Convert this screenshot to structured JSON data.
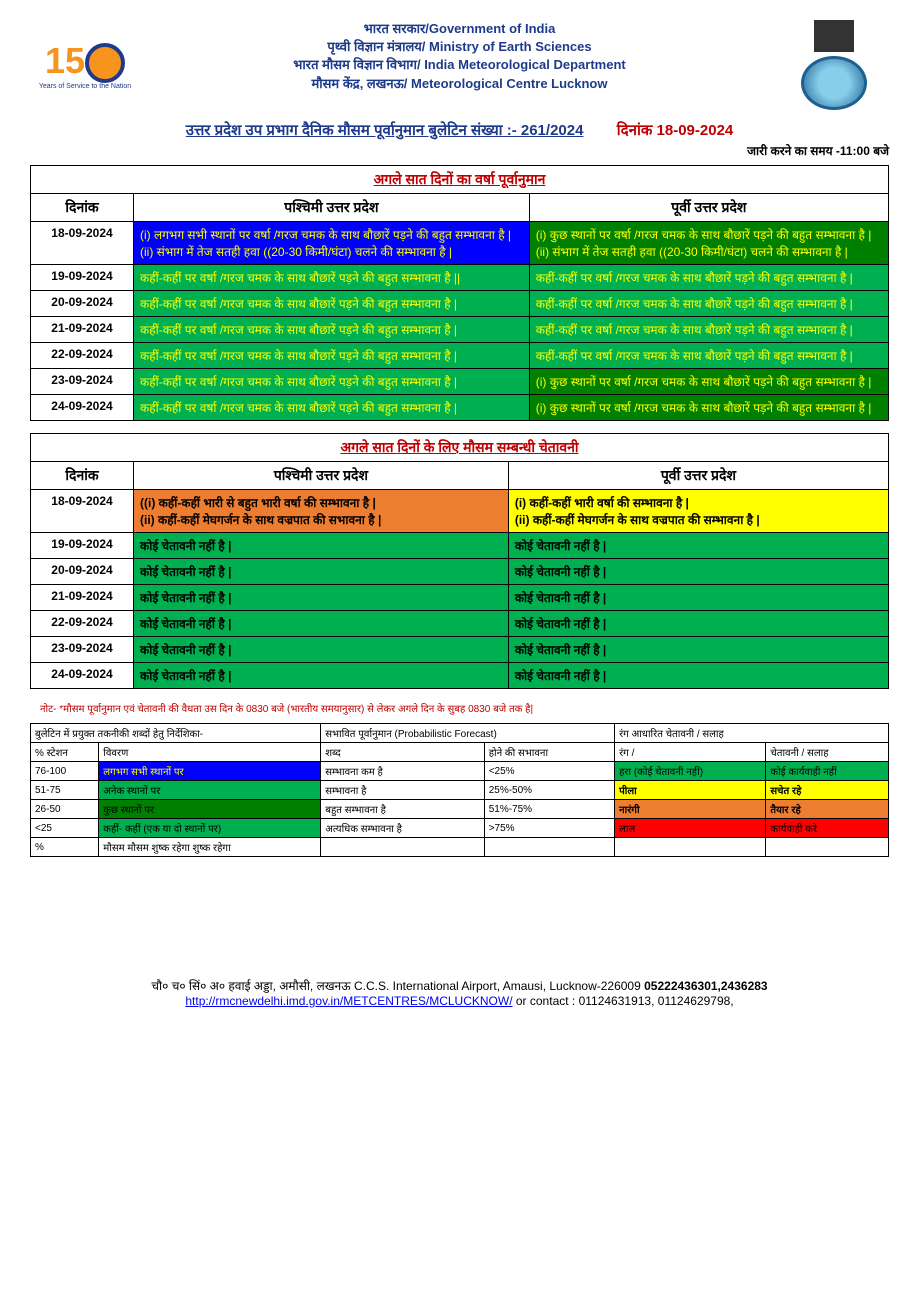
{
  "header": {
    "line1": "भारत सरकार/Government of India",
    "line2": "पृथ्वी विज्ञान मंत्रालय/ Ministry of Earth Sciences",
    "line3": "भारत मौसम विज्ञान विभाग/ India Meteorological Department",
    "line4": "मौसम केंद्र, लखनऊ/ Meteorological Centre Lucknow",
    "logo_sub": "Years of Service to the Nation"
  },
  "title": {
    "main": "उत्तर प्रदेश उप प्रभाग दैनिक मौसम पूर्वानुमान बुलेटिन संख्या  :- 261/2024",
    "date_label": "दिनांक 18-09-2024",
    "time": "जारी करने का समय -11:00 बजे"
  },
  "forecast": {
    "section_title": "अगले सात दिनों का वर्षा पूर्वानुमान",
    "col_date": "दिनांक",
    "col_west": "पश्चिमी उत्तर प्रदेश",
    "col_east": "पूर्वी उत्तर प्रदेश",
    "rows": [
      {
        "date": "18-09-2024",
        "west": "(i) लगभग सभी स्थानों पर वर्षा /गरज चमक के साथ बौछारें पड़ने की बहुत सम्भावना है |\n(ii) संभाग में तेज सतही हवा ((20-30 किमी/घंटा) चलने की सम्भावना है |",
        "west_bg": "bg-blue",
        "east": "(i) कुछ स्थानों पर वर्षा /गरज चमक के साथ बौछारें पड़ने की बहुत सम्भावना है |\n(ii) संभाग में तेज सतही हवा ((20-30 किमी/घंटा) चलने की सम्भावना है |",
        "east_bg": "bg-green-dark"
      },
      {
        "date": "19-09-2024",
        "west": "कहीं-कहीं पर वर्षा /गरज चमक के साथ बौछारें पड़ने की बहुत सम्भावना है ||",
        "west_bg": "bg-green-bright",
        "east": "कहीं-कहीं पर वर्षा /गरज चमक के साथ बौछारें पड़ने की बहुत सम्भावना है |",
        "east_bg": "bg-green-bright"
      },
      {
        "date": "20-09-2024",
        "west": "कहीं-कहीं पर वर्षा /गरज चमक के साथ बौछारें पड़ने की बहुत सम्भावना है |",
        "west_bg": "bg-green-bright",
        "east": "कहीं-कहीं पर वर्षा /गरज चमक के साथ बौछारें पड़ने की बहुत सम्भावना है |",
        "east_bg": "bg-green-bright"
      },
      {
        "date": "21-09-2024",
        "west": "कहीं-कहीं पर वर्षा /गरज चमक के साथ बौछारें पड़ने की बहुत सम्भावना है |",
        "west_bg": "bg-green-bright",
        "east": "कहीं-कहीं पर वर्षा /गरज चमक के साथ बौछारें पड़ने की बहुत सम्भावना है |",
        "east_bg": "bg-green-bright"
      },
      {
        "date": "22-09-2024",
        "west": "कहीं-कहीं पर वर्षा /गरज चमक के साथ बौछारें पड़ने की बहुत सम्भावना है |",
        "west_bg": "bg-green-bright",
        "east": "कहीं-कहीं पर वर्षा /गरज चमक के साथ बौछारें पड़ने की बहुत सम्भावना है |",
        "east_bg": "bg-green-bright"
      },
      {
        "date": "23-09-2024",
        "west": "कहीं-कहीं पर वर्षा /गरज चमक के साथ बौछारें पड़ने की बहुत सम्भावना है |",
        "west_bg": "bg-green-bright",
        "east": "(i) कुछ स्थानों पर वर्षा /गरज चमक के साथ बौछारें पड़ने की बहुत सम्भावना है |",
        "east_bg": "bg-green-dark"
      },
      {
        "date": "24-09-2024",
        "west": "कहीं-कहीं पर वर्षा /गरज चमक के साथ बौछारें पड़ने की बहुत सम्भावना है |",
        "west_bg": "bg-green-bright",
        "east": "(i) कुछ स्थानों पर वर्षा /गरज चमक के साथ बौछारें पड़ने की बहुत सम्भावना है |",
        "east_bg": "bg-green-dark"
      }
    ]
  },
  "warning": {
    "section_title": "अगले सात दिनों के लिए मौसम सम्बन्धी चेतावनी",
    "rows": [
      {
        "date": "18-09-2024",
        "west": "((i) कहीं-कहीं भारी से बहुत भारी वर्षा की सम्भावना है |\n(ii) कहीं-कहीं मेघगर्जन के साथ वज्रपात की सभावना है |",
        "west_bg": "bg-orange",
        "east": "(i) कहीं-कहीं भारी वर्षा की सम्भावना है |\n(ii) कहीं-कहीं मेघगर्जन के साथ वज्रपात की सम्भावना है |",
        "east_bg": "bg-yellow"
      },
      {
        "date": "19-09-2024",
        "west": "कोई चेतावनी नहीं है |",
        "west_bg": "bg-green-noalert",
        "east": "कोई चेतावनी नहीं है |",
        "east_bg": "bg-green-noalert"
      },
      {
        "date": "20-09-2024",
        "west": "कोई चेतावनी नहीं है |",
        "west_bg": "bg-green-noalert",
        "east": "कोई चेतावनी नहीं है |",
        "east_bg": "bg-green-noalert"
      },
      {
        "date": "21-09-2024",
        "west": "कोई चेतावनी नहीं है |",
        "west_bg": "bg-green-noalert",
        "east": "कोई चेतावनी नहीं है |",
        "east_bg": "bg-green-noalert"
      },
      {
        "date": "22-09-2024",
        "west": "कोई चेतावनी नहीं है |",
        "west_bg": "bg-green-noalert",
        "east": "कोई चेतावनी नहीं है |",
        "east_bg": "bg-green-noalert"
      },
      {
        "date": "23-09-2024",
        "west": "कोई चेतावनी नहीं है |",
        "west_bg": "bg-green-noalert",
        "east": "कोई चेतावनी नहीं है |",
        "east_bg": "bg-green-noalert"
      },
      {
        "date": "24-09-2024",
        "west": "कोई चेतावनी नहीं है |",
        "west_bg": "bg-green-noalert",
        "east": "कोई चेतावनी नहीं है |",
        "east_bg": "bg-green-noalert"
      }
    ]
  },
  "note": "नोट- *मौसम पूर्वानुमान एवं चेतावनी की वैधता उस दिन के 0830 बजे (भारतीय समयानुसार) से लेकर अगले दिन के सुबह 0830 बजे तक है|",
  "legend": {
    "h1": "बुलेटिन में प्रयुक्त तकनीकी शब्दों हेतु निर्देशिका-",
    "h2": "सभावित पूर्वानुमान (Probabilistic Forecast)",
    "h3": "रंग आधारित चेतावनी / सलाह",
    "sub": [
      "% स्टेशन",
      "विवरण",
      "शब्द",
      "होने की सभावना",
      "रंग /",
      "चेतावनी / सलाह"
    ],
    "rows": [
      {
        "c0": "76-100",
        "c1": "लगभग सभी स्थानों पर",
        "c1bg": "bg-blue",
        "c2": "सम्भावना कम है",
        "c3": "<25%",
        "c4": "हरा (कोई चेतावनी नहीं)",
        "c4bg": "bg-greenrow",
        "c5": "कोई कार्यवाही नहीं",
        "c5bg": "bg-greenrow"
      },
      {
        "c0": "51-75",
        "c1": "अनेक स्थानों पर",
        "c1bg": "bg-greenrow",
        "c2": "सम्भावना है",
        "c3": "25%-50%",
        "c4": "पीला",
        "c4bg": "bg-yellow",
        "c5": "सचेत रहे",
        "c5bg": "bg-yellow"
      },
      {
        "c0": "26-50",
        "c1": "कुछ स्थानों पर",
        "c1bg": "bg-dgreenrow",
        "c2": "बहुत सम्भावना है",
        "c3": "51%-75%",
        "c4": "नारंगी",
        "c4bg": "bg-orange",
        "c5": "तैयार रहे",
        "c5bg": "bg-orange"
      },
      {
        "c0": "<25",
        "c1": "कहीं- कहीं (एक या दो स्थानों पर)",
        "c1bg": "bg-greenrow",
        "c2": "अत्यधिक सम्भावना है",
        "c3": ">75%",
        "c4": "लाल",
        "c4bg": "bg-red",
        "c5": "कार्यवाही करे",
        "c5bg": "bg-red"
      },
      {
        "c0": "%",
        "c1": "मौसम मौसम शुष्क रहेगा शुष्क रहेगा",
        "c1bg": "",
        "c2": "",
        "c3": "",
        "c4": "",
        "c4bg": "",
        "c5": "",
        "c5bg": ""
      }
    ]
  },
  "footer": {
    "line1a": "चौ० च० सिं० अ० हवाई अड्डा, अमौसी, लखनऊ  C.C.S. International Airport, Amausi, Lucknow-226009 ",
    "line1b": "05222436301,2436283",
    "link": "http://rmcnewdelhi.imd.gov.in/METCENTRES/MCLUCKNOW/",
    "line2b": " or contact :  01124631913, 01124629798,"
  }
}
